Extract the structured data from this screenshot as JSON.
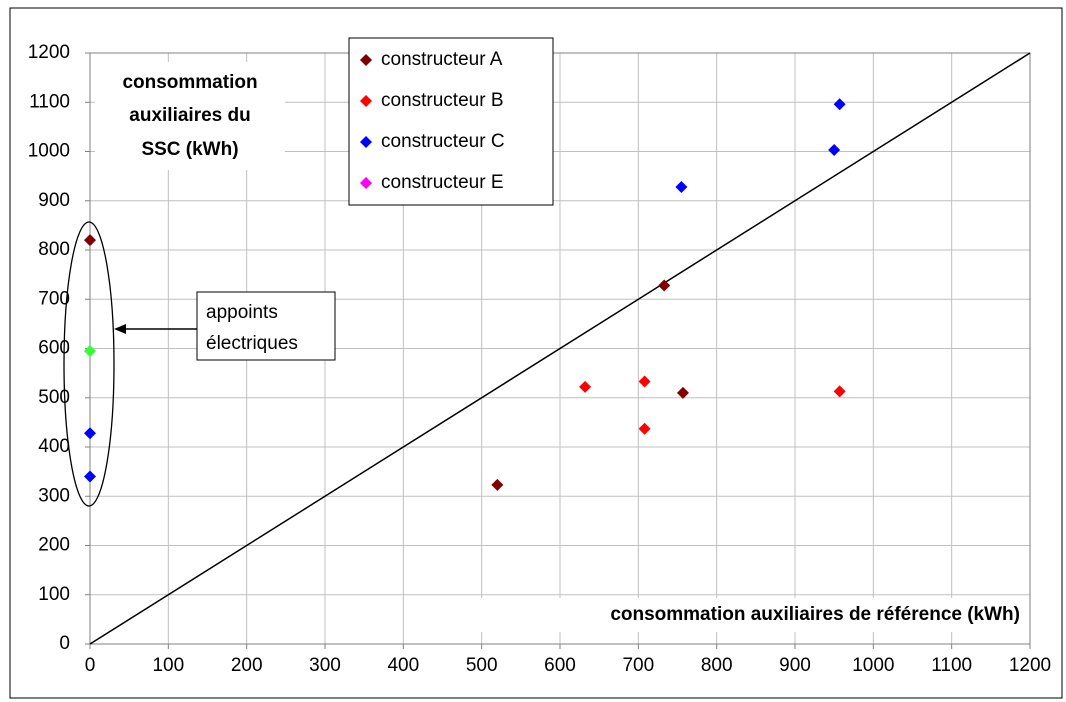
{
  "chart_data": {
    "type": "scatter",
    "x_label": "consommation auxiliaires de référence (kWh)",
    "y_label": [
      "consommation",
      "auxiliaires du",
      "SSC (kWh)"
    ],
    "annotation": [
      "appoints",
      "électriques"
    ],
    "xlim": [
      0,
      1200
    ],
    "ylim": [
      0,
      1200
    ],
    "xticks": [
      0,
      100,
      200,
      300,
      400,
      500,
      600,
      700,
      800,
      900,
      1000,
      1100,
      1200
    ],
    "yticks": [
      0,
      100,
      200,
      300,
      400,
      500,
      600,
      700,
      800,
      900,
      1000,
      1100,
      1200
    ],
    "grid": true,
    "legend": "top",
    "series": [
      {
        "name": "constructeur A",
        "color": "#800000",
        "x": [
          0,
          733,
          757,
          520
        ],
        "values": [
          820,
          728,
          510,
          323
        ]
      },
      {
        "name": "constructeur B",
        "color": "#ff0000",
        "x": [
          632,
          708,
          708,
          957
        ],
        "values": [
          522,
          533,
          437,
          513
        ]
      },
      {
        "name": "constructeur C",
        "color": "#0000ff",
        "x": [
          0,
          0,
          755,
          950,
          957
        ],
        "values": [
          428,
          340,
          928,
          1003,
          1096
        ]
      },
      {
        "name": "constructeur E",
        "color": "#ff00ff",
        "x": [],
        "values": []
      },
      {
        "name": null,
        "color": "#33ff33",
        "x": [
          0
        ],
        "values": [
          595
        ]
      }
    ]
  }
}
